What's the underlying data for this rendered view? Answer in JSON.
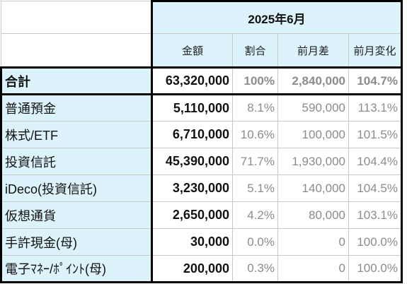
{
  "period_header": "2025年6月",
  "columns": [
    "金額",
    "割合",
    "前月差",
    "前月変化"
  ],
  "rows": [
    {
      "label": "合計",
      "amount": "63,320,000",
      "share": "100%",
      "diff": "2,840,000",
      "change": "104.7%"
    },
    {
      "label": "普通預金",
      "amount": "5,110,000",
      "share": "8.1%",
      "diff": "590,000",
      "change": "113.1%"
    },
    {
      "label": "株式/ETF",
      "amount": "6,710,000",
      "share": "10.6%",
      "diff": "100,000",
      "change": "101.5%"
    },
    {
      "label": "投資信託",
      "amount": "45,390,000",
      "share": "71.7%",
      "diff": "1,930,000",
      "change": "104.4%"
    },
    {
      "label": "iDeco(投資信託)",
      "amount": "3,230,000",
      "share": "5.1%",
      "diff": "140,000",
      "change": "104.5%"
    },
    {
      "label": "仮想通貨",
      "amount": "2,650,000",
      "share": "4.2%",
      "diff": "80,000",
      "change": "103.1%"
    },
    {
      "label": "手許現金(母)",
      "amount": "30,000",
      "share": "0.0%",
      "diff": "0",
      "change": "100.0%"
    },
    {
      "label": "電子ﾏﾈｰ/ﾎﾟｲﾝﾄ(母)",
      "amount": "200,000",
      "share": "0.3%",
      "diff": "0",
      "change": "100.0%"
    }
  ],
  "colors": {
    "header_bg": "#ddf3fb",
    "muted_text": "#8c8c8c",
    "border_strong": "#000000"
  }
}
